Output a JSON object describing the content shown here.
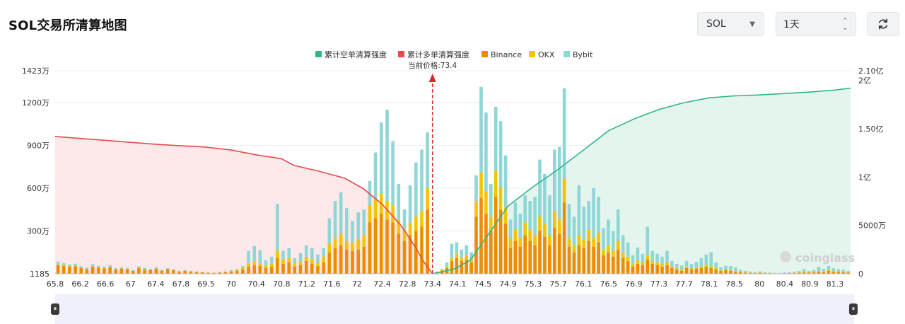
{
  "header": {
    "title": "SOL交易所清算地图",
    "symbol_value": "SOL",
    "range_value": "1天",
    "refresh_icon": "refresh-icon"
  },
  "chart_data": {
    "type": "bar",
    "legend": [
      "累计空单清算强度",
      "累计多单清算强度",
      "Binance",
      "OKX",
      "Bybit"
    ],
    "colors": {
      "short_cum": "#2fb58a",
      "long_cum": "#e5484d",
      "binance": "#f08a00",
      "okx": "#f5c400",
      "bybit": "#8fd6d7",
      "price_line": "#d62728"
    },
    "current_price_label": "当前价格:73.4",
    "current_price": 73.4,
    "x_ticks": [
      "65.8",
      "66.2",
      "66.6",
      "67",
      "67.4",
      "67.8",
      "69.5",
      "70",
      "70.4",
      "70.8",
      "71.2",
      "71.6",
      "72",
      "72.4",
      "72.8",
      "73.4",
      "74.1",
      "74.5",
      "74.9",
      "75.3",
      "75.7",
      "76.1",
      "76.5",
      "76.9",
      "77.3",
      "77.7",
      "78.1",
      "78.5",
      "80",
      "80.4",
      "80.9",
      "81.3"
    ],
    "y_left_ticks": [
      "1423万",
      "1200万",
      "900万",
      "600万",
      "300万",
      "1185"
    ],
    "y_left_values": [
      14230000,
      12000000,
      9000000,
      6000000,
      3000000,
      1185
    ],
    "y_right_ticks": [
      "2.10亿",
      "2亿",
      "1.50亿",
      "1亿",
      "5000万",
      "0"
    ],
    "y_right_values": [
      210000000,
      200000000,
      150000000,
      100000000,
      50000000,
      0
    ],
    "ylim_left": [
      1185,
      14230000
    ],
    "ylim_right": [
      0,
      210000000
    ],
    "watermark": "coinglass",
    "bars_below_price": [
      [
        600000,
        50000,
        200000
      ],
      [
        550000,
        40000,
        150000
      ],
      [
        500000,
        30000,
        120000
      ],
      [
        520000,
        40000,
        150000
      ],
      [
        400000,
        30000,
        100000
      ],
      [
        320000,
        20000,
        90000
      ],
      [
        500000,
        40000,
        130000
      ],
      [
        420000,
        30000,
        110000
      ],
      [
        380000,
        30000,
        100000
      ],
      [
        450000,
        30000,
        120000
      ],
      [
        300000,
        20000,
        80000
      ],
      [
        350000,
        20000,
        80000
      ],
      [
        300000,
        20000,
        80000
      ],
      [
        200000,
        10000,
        60000
      ],
      [
        400000,
        30000,
        90000
      ],
      [
        300000,
        20000,
        90000
      ],
      [
        250000,
        20000,
        70000
      ],
      [
        350000,
        20000,
        80000
      ],
      [
        220000,
        10000,
        60000
      ],
      [
        300000,
        20000,
        80000
      ],
      [
        250000,
        10000,
        60000
      ],
      [
        150000,
        10000,
        50000
      ],
      [
        200000,
        10000,
        60000
      ],
      [
        150000,
        10000,
        40000
      ],
      [
        120000,
        10000,
        40000
      ],
      [
        100000,
        10000,
        30000
      ],
      [
        80000,
        5000,
        20000
      ],
      [
        60000,
        5000,
        20000
      ],
      [
        90000,
        5000,
        30000
      ],
      [
        120000,
        10000,
        40000
      ],
      [
        150000,
        50000,
        50000
      ],
      [
        200000,
        80000,
        60000
      ],
      [
        300000,
        100000,
        150000
      ],
      [
        500000,
        200000,
        900000
      ],
      [
        600000,
        250000,
        1100000
      ],
      [
        550000,
        200000,
        900000
      ],
      [
        400000,
        150000,
        400000
      ],
      [
        500000,
        200000,
        500000
      ],
      [
        1100000,
        500000,
        3300000
      ],
      [
        700000,
        300000,
        600000
      ],
      [
        800000,
        300000,
        700000
      ],
      [
        500000,
        200000,
        400000
      ],
      [
        600000,
        250000,
        600000
      ],
      [
        900000,
        300000,
        800000
      ],
      [
        700000,
        300000,
        800000
      ],
      [
        550000,
        200000,
        600000
      ],
      [
        800000,
        400000,
        600000
      ],
      [
        1500000,
        600000,
        1800000
      ],
      [
        1800000,
        700000,
        2600000
      ],
      [
        2000000,
        800000,
        2900000
      ],
      [
        1700000,
        600000,
        2300000
      ],
      [
        1600000,
        600000,
        1500000
      ],
      [
        1700000,
        700000,
        1900000
      ],
      [
        1900000,
        800000,
        1800000
      ],
      [
        3600000,
        1200000,
        1700000
      ],
      [
        3900000,
        1300000,
        3300000
      ],
      [
        4200000,
        1400000,
        5000000
      ],
      [
        3800000,
        1300000,
        6400000
      ],
      [
        3600000,
        1200000,
        4500000
      ],
      [
        2800000,
        1000000,
        2500000
      ],
      [
        2300000,
        800000,
        1400000
      ],
      [
        2700000,
        900000,
        2600000
      ],
      [
        3000000,
        1000000,
        3800000
      ],
      [
        3300000,
        1100000,
        4300000
      ],
      [
        4500000,
        1500000,
        3900000
      ]
    ],
    "bars_above_price": [
      [
        100000,
        10000,
        50000
      ],
      [
        200000,
        50000,
        100000
      ],
      [
        400000,
        100000,
        300000
      ],
      [
        900000,
        200000,
        1000000
      ],
      [
        1100000,
        300000,
        800000
      ],
      [
        900000,
        200000,
        600000
      ],
      [
        1000000,
        300000,
        700000
      ],
      [
        800000,
        200000,
        500000
      ],
      [
        4000000,
        1100000,
        1800000
      ],
      [
        5300000,
        1800000,
        6000000
      ],
      [
        4200000,
        1600000,
        5500000
      ],
      [
        3000000,
        1000000,
        2300000
      ],
      [
        5400000,
        1800000,
        4500000
      ],
      [
        4500000,
        1500000,
        4700000
      ],
      [
        3500000,
        1200000,
        3600000
      ],
      [
        1800000,
        700000,
        1300000
      ],
      [
        2300000,
        800000,
        1900000
      ],
      [
        1900000,
        600000,
        1700000
      ],
      [
        2700000,
        900000,
        1900000
      ],
      [
        2300000,
        800000,
        2000000
      ],
      [
        2000000,
        700000,
        2700000
      ],
      [
        3000000,
        1000000,
        4000000
      ],
      [
        2600000,
        900000,
        3500000
      ],
      [
        2000000,
        700000,
        2800000
      ],
      [
        3200000,
        1200000,
        4300000
      ],
      [
        2800000,
        1000000,
        5100000
      ],
      [
        5000000,
        1700000,
        6300000
      ],
      [
        1900000,
        600000,
        2400000
      ],
      [
        1500000,
        500000,
        2000000
      ],
      [
        2000000,
        700000,
        3500000
      ],
      [
        1800000,
        600000,
        2300000
      ],
      [
        2300000,
        800000,
        2000000
      ],
      [
        1900000,
        600000,
        3500000
      ],
      [
        2200000,
        700000,
        2500000
      ],
      [
        1300000,
        400000,
        1500000
      ],
      [
        1500000,
        500000,
        1800000
      ],
      [
        1200000,
        400000,
        1400000
      ],
      [
        1700000,
        600000,
        2200000
      ],
      [
        1100000,
        400000,
        1200000
      ],
      [
        900000,
        300000,
        1000000
      ],
      [
        500000,
        200000,
        600000
      ],
      [
        700000,
        250000,
        900000
      ],
      [
        600000,
        200000,
        600000
      ],
      [
        1000000,
        300000,
        2000000
      ],
      [
        700000,
        200000,
        700000
      ],
      [
        600000,
        200000,
        600000
      ],
      [
        500000,
        200000,
        500000
      ],
      [
        600000,
        200000,
        800000
      ],
      [
        400000,
        100000,
        400000
      ],
      [
        300000,
        100000,
        300000
      ],
      [
        200000,
        80000,
        300000
      ],
      [
        400000,
        100000,
        400000
      ],
      [
        300000,
        80000,
        300000
      ],
      [
        350000,
        80000,
        400000
      ],
      [
        400000,
        100000,
        600000
      ],
      [
        500000,
        150000,
        700000
      ],
      [
        400000,
        120000,
        1000000
      ],
      [
        300000,
        100000,
        400000
      ],
      [
        200000,
        50000,
        200000
      ],
      [
        250000,
        60000,
        250000
      ],
      [
        200000,
        50000,
        300000
      ],
      [
        150000,
        40000,
        250000
      ],
      [
        100000,
        30000,
        150000
      ],
      [
        80000,
        20000,
        100000
      ],
      [
        60000,
        20000,
        80000
      ],
      [
        50000,
        10000,
        60000
      ],
      [
        70000,
        20000,
        80000
      ],
      [
        50000,
        10000,
        50000
      ],
      [
        40000,
        10000,
        40000
      ],
      [
        30000,
        10000,
        30000
      ],
      [
        20000,
        5000,
        20000
      ],
      [
        40000,
        10000,
        40000
      ],
      [
        50000,
        10000,
        50000
      ],
      [
        60000,
        20000,
        60000
      ],
      [
        80000,
        20000,
        100000
      ],
      [
        100000,
        30000,
        200000
      ],
      [
        80000,
        20000,
        100000
      ],
      [
        100000,
        30000,
        150000
      ],
      [
        150000,
        40000,
        300000
      ],
      [
        120000,
        30000,
        200000
      ],
      [
        200000,
        50000,
        300000
      ],
      [
        150000,
        40000,
        200000
      ],
      [
        120000,
        30000,
        180000
      ],
      [
        100000,
        30000,
        150000
      ],
      [
        80000,
        20000,
        100000
      ]
    ],
    "long_cum_curve": [
      [
        65.8,
        142000000
      ],
      [
        66.6,
        138000000
      ],
      [
        67.4,
        134000000
      ],
      [
        68.2,
        132000000
      ],
      [
        69.5,
        131000000
      ],
      [
        70.0,
        128000000
      ],
      [
        70.4,
        123000000
      ],
      [
        70.8,
        119000000
      ],
      [
        71.0,
        112000000
      ],
      [
        71.4,
        106000000
      ],
      [
        71.8,
        99000000
      ],
      [
        72.1,
        88000000
      ],
      [
        72.4,
        72000000
      ],
      [
        72.7,
        50000000
      ],
      [
        73.0,
        27000000
      ],
      [
        73.2,
        12000000
      ],
      [
        73.4,
        0
      ]
    ],
    "short_cum_curve": [
      [
        73.4,
        0
      ],
      [
        74.0,
        5000000
      ],
      [
        74.3,
        14000000
      ],
      [
        74.6,
        42000000
      ],
      [
        74.9,
        70000000
      ],
      [
        75.3,
        90000000
      ],
      [
        75.7,
        108000000
      ],
      [
        76.1,
        128000000
      ],
      [
        76.5,
        148000000
      ],
      [
        76.9,
        160000000
      ],
      [
        77.3,
        170000000
      ],
      [
        77.7,
        177000000
      ],
      [
        78.1,
        182000000
      ],
      [
        78.5,
        184000000
      ],
      [
        80.0,
        185000000
      ],
      [
        80.9,
        188000000
      ],
      [
        81.3,
        190000000
      ],
      [
        82.0,
        192000000
      ]
    ]
  }
}
